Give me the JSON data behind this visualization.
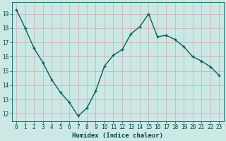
{
  "x": [
    0,
    1,
    2,
    3,
    4,
    5,
    6,
    7,
    8,
    9,
    10,
    11,
    12,
    13,
    14,
    15,
    16,
    17,
    18,
    19,
    20,
    21,
    22,
    23
  ],
  "y": [
    19.3,
    18.0,
    16.6,
    15.6,
    14.4,
    13.5,
    12.8,
    11.85,
    12.4,
    13.6,
    15.35,
    16.1,
    16.5,
    17.6,
    18.1,
    19.0,
    17.4,
    17.5,
    17.2,
    16.7,
    16.0,
    15.7,
    15.3,
    14.7
  ],
  "xlabel": "Humidex (Indice chaleur)",
  "bg_color": "#cce8e4",
  "grid_color": "#c8b8b8",
  "line_color": "#006060",
  "marker_color": "#006060",
  "tick_label_color": "#004444",
  "axis_color": "#006060",
  "xlabel_color": "#004444",
  "ylim": [
    11.5,
    19.8
  ],
  "xlim": [
    -0.5,
    23.5
  ],
  "yticks": [
    12,
    13,
    14,
    15,
    16,
    17,
    18,
    19
  ],
  "xticks": [
    0,
    1,
    2,
    3,
    4,
    5,
    6,
    7,
    8,
    9,
    10,
    11,
    12,
    13,
    14,
    15,
    16,
    17,
    18,
    19,
    20,
    21,
    22,
    23
  ],
  "xlabel_fontsize": 6.5,
  "tick_fontsize": 5.5,
  "linewidth": 1.0,
  "markersize": 3.5,
  "marker": "+"
}
